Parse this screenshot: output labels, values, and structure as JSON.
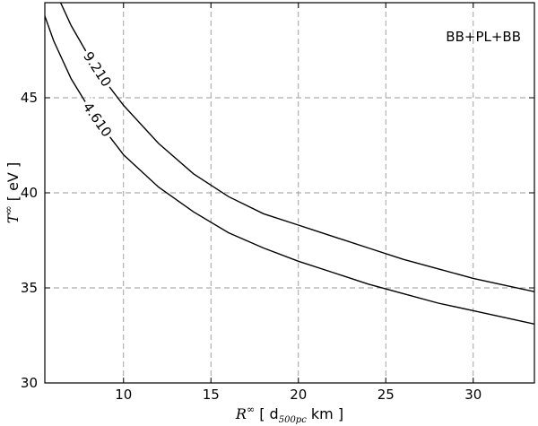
{
  "chart_data": {
    "type": "line",
    "title": "",
    "annotation": "BB+PL+BB",
    "xlabel": {
      "symbol": "R",
      "superscript": "∞",
      "open": " [ d",
      "subscript": "500pc",
      "close": "  km ]"
    },
    "ylabel": {
      "symbol": "T",
      "superscript": "∞",
      "rest": " [ eV ]"
    },
    "xlim": [
      5.5,
      33.5
    ],
    "ylim": [
      30,
      50
    ],
    "xticks": [
      10,
      15,
      20,
      25,
      30
    ],
    "yticks": [
      30,
      35,
      40,
      45
    ],
    "xtick_labels": [
      "10",
      "15",
      "20",
      "25",
      "30"
    ],
    "ytick_labels": [
      "30",
      "35",
      "40",
      "45"
    ],
    "grid": true,
    "series": [
      {
        "name": "9.210",
        "x": [
          6.4,
          7.0,
          8.0,
          9.0,
          10.0,
          12.0,
          14.0,
          16.0,
          18.0,
          20.0,
          22.0,
          24.0,
          26.0,
          28.0,
          30.0,
          32.0,
          33.5
        ],
        "y": [
          50.0,
          48.8,
          47.2,
          45.8,
          44.6,
          42.6,
          41.0,
          39.8,
          38.9,
          38.3,
          37.7,
          37.1,
          36.5,
          36.0,
          35.5,
          35.1,
          34.8
        ]
      },
      {
        "name": "4.610",
        "x": [
          5.5,
          6.0,
          7.0,
          8.0,
          9.0,
          10.0,
          12.0,
          14.0,
          16.0,
          18.0,
          20.0,
          22.0,
          24.0,
          26.0,
          28.0,
          30.0,
          32.0,
          33.5
        ],
        "y": [
          49.3,
          48.0,
          46.0,
          44.5,
          43.2,
          42.0,
          40.3,
          39.0,
          37.9,
          37.1,
          36.4,
          35.8,
          35.2,
          34.7,
          34.2,
          33.8,
          33.4,
          33.1
        ]
      }
    ]
  }
}
